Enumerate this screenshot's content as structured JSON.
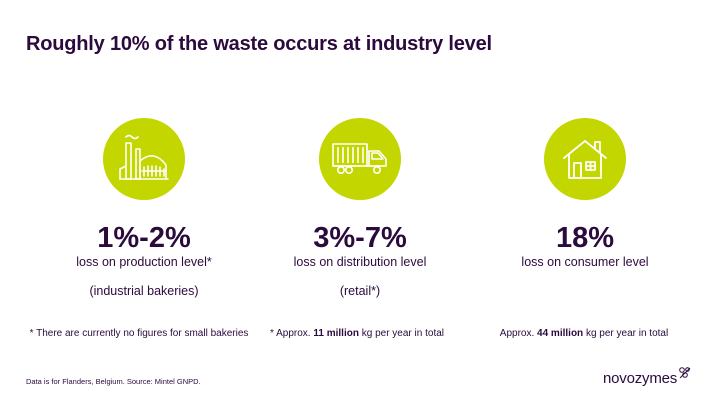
{
  "title": "Roughly 10% of the waste occurs at industry level",
  "columns": [
    {
      "icon": "factory-icon",
      "percent": "1%-2%",
      "description": "loss on production level*",
      "sub": "(industrial bakeries)"
    },
    {
      "icon": "truck-icon",
      "percent": "3%-7%",
      "description": "loss on distribution level",
      "sub": "(retail*)"
    },
    {
      "icon": "house-icon",
      "percent": "18%",
      "description": "loss on consumer level",
      "sub": ""
    }
  ],
  "notes": {
    "production": "* There are currently no figures for small bakeries",
    "distribution": {
      "prefix": "* Approx.",
      "highlight": "11 million",
      "suffix": "kg per year in total"
    },
    "consumer": {
      "prefix": "Approx.",
      "highlight": "44 million",
      "suffix": "kg per year in total"
    }
  },
  "footer": "Data is for Flanders, Belgium. Source: Mintel GNPD.",
  "logo": {
    "text": "novozymes",
    "mark_icon": "novozymes-logo-mark-icon"
  },
  "colors": {
    "accent": "#c3d600",
    "text": "#2b0a3d",
    "background": "#ffffff"
  }
}
